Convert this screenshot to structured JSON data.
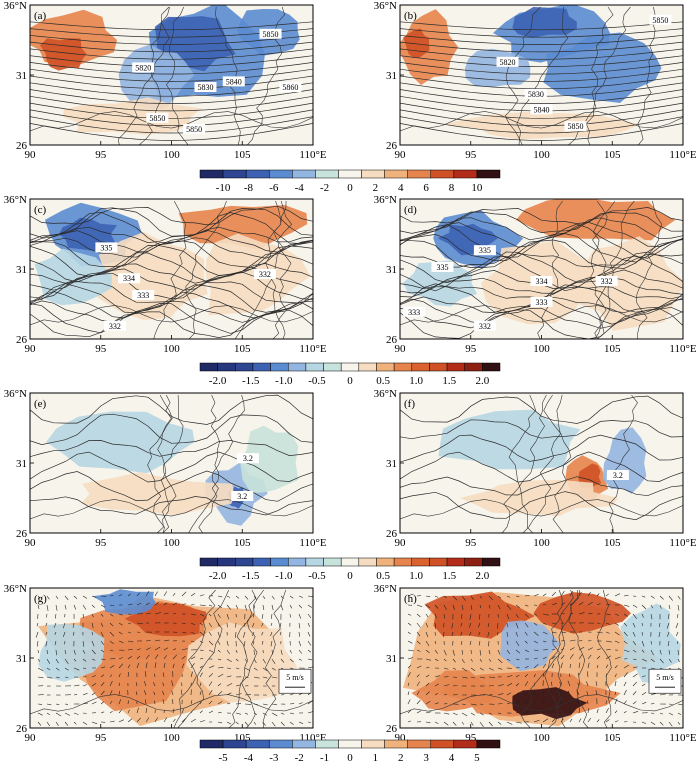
{
  "panels": [
    {
      "label": "(a)",
      "row": 0,
      "col": 0,
      "colorbar": 0,
      "contour_labels": [
        "5820",
        "5830",
        "5840",
        "5850",
        "5860",
        "5850",
        "5850"
      ]
    },
    {
      "label": "(b)",
      "row": 0,
      "col": 1,
      "colorbar": 0,
      "contour_labels": [
        "5820",
        "5830",
        "5840",
        "5850",
        "5850"
      ]
    },
    {
      "label": "(c)",
      "row": 1,
      "col": 0,
      "colorbar": 1,
      "contour_labels": [
        "335",
        "334",
        "333",
        "332",
        "332"
      ]
    },
    {
      "label": "(d)",
      "row": 1,
      "col": 1,
      "colorbar": 1,
      "contour_labels": [
        "335",
        "335",
        "334",
        "333",
        "333",
        "332",
        "332"
      ]
    },
    {
      "label": "(e)",
      "row": 2,
      "col": 0,
      "colorbar": 2,
      "contour_labels": [
        "3.2",
        "3.2"
      ]
    },
    {
      "label": "(f)",
      "row": 2,
      "col": 1,
      "colorbar": 2,
      "contour_labels": [
        "3.2"
      ]
    },
    {
      "label": "(g)",
      "row": 3,
      "col": 0,
      "colorbar": 3,
      "contour_labels": [],
      "vector_ref": "5 m/s"
    },
    {
      "label": "(h)",
      "row": 3,
      "col": 1,
      "colorbar": 3,
      "contour_labels": [],
      "vector_ref": "5 m/s"
    }
  ],
  "axes": {
    "x_ticks": [
      "90",
      "95",
      "100",
      "105",
      "110°E"
    ],
    "y_ticks": [
      "36°N",
      "31",
      "26"
    ]
  },
  "colorbars": [
    {
      "labels": [
        "-10",
        "-8",
        "-6",
        "-4",
        "-2",
        "0",
        "2",
        "4",
        "6",
        "8",
        "10"
      ],
      "colors": [
        "#1f2a66",
        "#2e4591",
        "#3d62b4",
        "#5b8cd2",
        "#93b5e1",
        "#c8e2dc",
        "#f7f4ec",
        "#f6ddc1",
        "#f0b27d",
        "#e5844c",
        "#cf5125",
        "#b32c1a",
        "#311013"
      ]
    },
    {
      "labels": [
        "-2.0",
        "-1.5",
        "-1.0",
        "-0.5",
        "0",
        "0.5",
        "1.0",
        "1.5",
        "2.0"
      ],
      "colors": [
        "#1f2a66",
        "#27377d",
        "#2e4591",
        "#3d62b4",
        "#5b8cd2",
        "#93b5e1",
        "#b6d6e3",
        "#c8e2dc",
        "#f7f4ec",
        "#f6ddc1",
        "#f0b27d",
        "#e5844c",
        "#d9622e",
        "#cf5125",
        "#b32c1a",
        "#8c2012",
        "#311013"
      ]
    },
    {
      "labels": [
        "-2.0",
        "-1.5",
        "-1.0",
        "-0.5",
        "0",
        "0.5",
        "1.0",
        "1.5",
        "2.0"
      ],
      "colors": [
        "#1f2a66",
        "#27377d",
        "#2e4591",
        "#3d62b4",
        "#5b8cd2",
        "#93b5e1",
        "#b6d6e3",
        "#c8e2dc",
        "#f7f4ec",
        "#f6ddc1",
        "#f0b27d",
        "#e5844c",
        "#d9622e",
        "#cf5125",
        "#b32c1a",
        "#8c2012",
        "#311013"
      ]
    },
    {
      "labels": [
        "-5",
        "-4",
        "-3",
        "-2",
        "-1",
        "0",
        "1",
        "2",
        "3",
        "4",
        "5"
      ],
      "colors": [
        "#1f2a66",
        "#2e4591",
        "#3d62b4",
        "#5b8cd2",
        "#93b5e1",
        "#c8e2dc",
        "#f7f4ec",
        "#f6ddc1",
        "#f0b27d",
        "#e5844c",
        "#cf5125",
        "#b32c1a",
        "#311013"
      ]
    }
  ],
  "colors": {
    "frame": "#000000",
    "contour": "#2b2b2b",
    "boundary": "#333333",
    "vector": "#222222",
    "strong_neg": "#3d62b4",
    "mid_neg": "#5b8cd2",
    "weak_neg": "#b6d6e3",
    "weak_pos": "#f6ddc1",
    "mid_pos": "#e5844c",
    "strong_pos": "#cf5125",
    "extreme_pos": "#311013"
  }
}
